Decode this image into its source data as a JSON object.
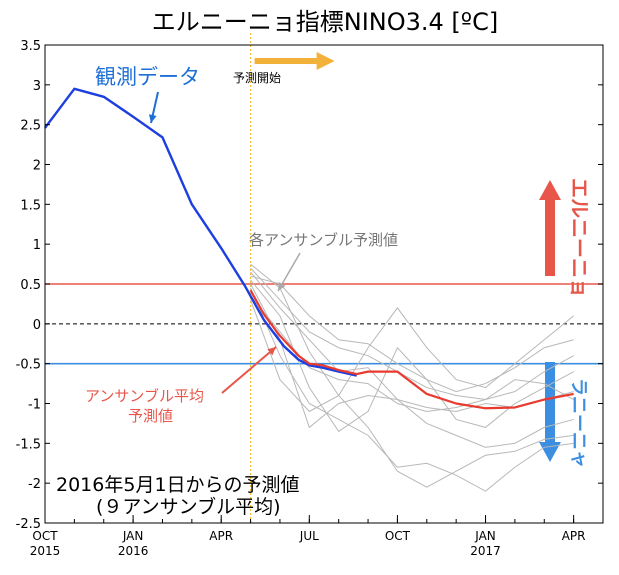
{
  "chart_data": {
    "type": "line",
    "title": "エルニーニョ指標NINO3.4 [ºC]",
    "xlabel": "",
    "ylabel": "",
    "xlim": [
      "2015-10",
      "2017-05"
    ],
    "ylim": [
      -2.5,
      3.5
    ],
    "yticks": [
      "3.5",
      "3",
      "2.5",
      "2",
      "1.5",
      "1",
      "0.5",
      "0",
      "-0.5",
      "-1",
      "-1.5",
      "-2",
      "-2.5"
    ],
    "xticks": [
      {
        "month": "2015-10",
        "label": "OCT",
        "year": "2015"
      },
      {
        "month": "2016-01",
        "label": "JAN",
        "year": "2016"
      },
      {
        "month": "2016-04",
        "label": "APR",
        "year": ""
      },
      {
        "month": "2016-07",
        "label": "JUL",
        "year": ""
      },
      {
        "month": "2016-10",
        "label": "OCT",
        "year": ""
      },
      {
        "month": "2017-01",
        "label": "JAN",
        "year": "2017"
      },
      {
        "month": "2017-04",
        "label": "APR",
        "year": ""
      }
    ],
    "grid": false,
    "reference_lines": [
      {
        "y": 0.5,
        "color": "#e8564a",
        "style": "solid"
      },
      {
        "y": 0,
        "color": "#000000",
        "style": "dashed"
      },
      {
        "y": -0.5,
        "color": "#3c8fe0",
        "style": "solid"
      }
    ],
    "forecast_start": "2016-05-01",
    "observed": {
      "color": "#1d3fe0",
      "points": [
        [
          "2015-10-01",
          2.46
        ],
        [
          "2015-11-01",
          2.95
        ],
        [
          "2015-12-01",
          2.85
        ],
        [
          "2016-01-01",
          2.6
        ],
        [
          "2016-02-01",
          2.34
        ],
        [
          "2016-03-01",
          1.5
        ],
        [
          "2016-04-01",
          0.95
        ],
        [
          "2016-04-25",
          0.48
        ],
        [
          "2016-05-15",
          0.05
        ],
        [
          "2016-06-05",
          -0.28
        ],
        [
          "2016-06-20",
          -0.45
        ],
        [
          "2016-07-01",
          -0.52
        ],
        [
          "2016-07-15",
          -0.55
        ],
        [
          "2016-08-01",
          -0.6
        ],
        [
          "2016-08-20",
          -0.65
        ]
      ]
    },
    "ensemble_mean": {
      "color": "#e83a2e",
      "points": [
        [
          "2016-05-01",
          0.42
        ],
        [
          "2016-05-15",
          0.12
        ],
        [
          "2016-06-01",
          -0.15
        ],
        [
          "2016-06-20",
          -0.4
        ],
        [
          "2016-07-01",
          -0.5
        ],
        [
          "2016-07-15",
          -0.52
        ],
        [
          "2016-08-01",
          -0.58
        ],
        [
          "2016-08-20",
          -0.63
        ],
        [
          "2016-09-01",
          -0.6
        ],
        [
          "2016-10-01",
          -0.6
        ],
        [
          "2016-11-01",
          -0.88
        ],
        [
          "2016-12-01",
          -1.0
        ],
        [
          "2017-01-01",
          -1.06
        ],
        [
          "2017-02-01",
          -1.05
        ],
        [
          "2017-03-01",
          -0.95
        ],
        [
          "2017-04-01",
          -0.88
        ]
      ]
    },
    "ensemble_members": {
      "color": "#b8b8b8",
      "series": [
        [
          [
            "2016-05-01",
            0.7
          ],
          [
            "2016-06-01",
            0.3
          ],
          [
            "2016-07-01",
            -0.1
          ],
          [
            "2016-08-01",
            -0.3
          ],
          [
            "2016-09-01",
            -0.4
          ],
          [
            "2016-10-01",
            -0.6
          ],
          [
            "2016-11-01",
            -0.8
          ],
          [
            "2016-12-01",
            -0.9
          ],
          [
            "2017-01-01",
            -0.95
          ],
          [
            "2017-02-01",
            -0.85
          ],
          [
            "2017-03-01",
            -0.6
          ],
          [
            "2017-04-01",
            -0.4
          ]
        ],
        [
          [
            "2016-05-01",
            0.75
          ],
          [
            "2016-06-01",
            0.45
          ],
          [
            "2016-07-01",
            -0.35
          ],
          [
            "2016-08-01",
            -0.9
          ],
          [
            "2016-09-01",
            -0.3
          ],
          [
            "2016-10-01",
            0.2
          ],
          [
            "2016-11-01",
            -0.3
          ],
          [
            "2016-12-01",
            -0.7
          ],
          [
            "2017-01-01",
            -0.8
          ],
          [
            "2017-02-01",
            -0.5
          ],
          [
            "2017-03-01",
            -0.2
          ],
          [
            "2017-04-01",
            0.1
          ]
        ],
        [
          [
            "2016-05-01",
            0.6
          ],
          [
            "2016-06-01",
            0.5
          ],
          [
            "2016-07-01",
            0.1
          ],
          [
            "2016-08-01",
            -0.2
          ],
          [
            "2016-09-01",
            -0.25
          ],
          [
            "2016-10-01",
            -0.5
          ],
          [
            "2016-11-01",
            -0.7
          ],
          [
            "2016-12-01",
            -0.85
          ],
          [
            "2017-01-01",
            -0.75
          ],
          [
            "2017-02-01",
            -0.55
          ],
          [
            "2017-03-01",
            -0.3
          ],
          [
            "2017-04-01",
            -0.2
          ]
        ],
        [
          [
            "2016-05-01",
            0.5
          ],
          [
            "2016-06-01",
            -0.2
          ],
          [
            "2016-07-01",
            -1.3
          ],
          [
            "2016-08-01",
            -1.0
          ],
          [
            "2016-09-01",
            -0.9
          ],
          [
            "2016-10-01",
            -0.95
          ],
          [
            "2016-11-01",
            -1.25
          ],
          [
            "2016-12-01",
            -1.4
          ],
          [
            "2017-01-01",
            -1.55
          ],
          [
            "2017-02-01",
            -1.5
          ],
          [
            "2017-03-01",
            -1.3
          ],
          [
            "2017-04-01",
            -1.2
          ]
        ],
        [
          [
            "2016-05-01",
            0.55
          ],
          [
            "2016-06-01",
            0.1
          ],
          [
            "2016-07-01",
            -0.8
          ],
          [
            "2016-08-01",
            -1.35
          ],
          [
            "2016-09-01",
            -1.1
          ],
          [
            "2016-10-01",
            -0.3
          ],
          [
            "2016-11-01",
            -0.7
          ],
          [
            "2016-12-01",
            -1.2
          ],
          [
            "2017-01-01",
            -1.3
          ],
          [
            "2017-02-01",
            -1.0
          ],
          [
            "2017-03-01",
            -0.8
          ],
          [
            "2017-04-01",
            -0.6
          ]
        ],
        [
          [
            "2016-05-01",
            0.45
          ],
          [
            "2016-06-01",
            -0.4
          ],
          [
            "2016-07-01",
            -1.0
          ],
          [
            "2016-08-01",
            -1.2
          ],
          [
            "2016-09-01",
            -1.4
          ],
          [
            "2016-10-01",
            -1.8
          ],
          [
            "2016-11-01",
            -1.75
          ],
          [
            "2016-12-01",
            -1.9
          ],
          [
            "2017-01-01",
            -2.1
          ],
          [
            "2017-02-01",
            -1.8
          ],
          [
            "2017-03-01",
            -1.55
          ],
          [
            "2017-04-01",
            -1.5
          ]
        ],
        [
          [
            "2016-05-01",
            0.3
          ],
          [
            "2016-06-01",
            -0.7
          ],
          [
            "2016-07-01",
            -1.1
          ],
          [
            "2016-08-01",
            -0.9
          ],
          [
            "2016-09-01",
            -1.3
          ],
          [
            "2016-10-01",
            -1.85
          ],
          [
            "2016-11-01",
            -2.05
          ],
          [
            "2016-12-01",
            -1.85
          ],
          [
            "2017-01-01",
            -1.65
          ],
          [
            "2017-02-01",
            -1.6
          ],
          [
            "2017-03-01",
            -1.45
          ],
          [
            "2017-04-01",
            -1.4
          ]
        ],
        [
          [
            "2016-05-01",
            0.65
          ],
          [
            "2016-06-01",
            0.2
          ],
          [
            "2016-07-01",
            -0.2
          ],
          [
            "2016-08-01",
            -0.6
          ],
          [
            "2016-09-01",
            -0.55
          ],
          [
            "2016-10-01",
            -0.95
          ],
          [
            "2016-11-01",
            -1.05
          ],
          [
            "2016-12-01",
            -1.1
          ],
          [
            "2017-01-01",
            -1.0
          ],
          [
            "2017-02-01",
            -1.05
          ],
          [
            "2017-03-01",
            -0.95
          ],
          [
            "2017-04-01",
            -0.85
          ]
        ],
        [
          [
            "2016-05-01",
            0.35
          ],
          [
            "2016-06-01",
            -0.1
          ],
          [
            "2016-07-01",
            -0.55
          ],
          [
            "2016-08-01",
            -0.7
          ],
          [
            "2016-09-01",
            -0.75
          ],
          [
            "2016-10-01",
            -1.0
          ],
          [
            "2016-11-01",
            -1.1
          ],
          [
            "2016-12-01",
            -1.05
          ],
          [
            "2017-01-01",
            -0.95
          ],
          [
            "2017-02-01",
            -0.7
          ],
          [
            "2017-03-01",
            -0.75
          ],
          [
            "2017-04-01",
            -0.95
          ]
        ]
      ]
    },
    "annotations": {
      "observed_label": "観測データ",
      "forecast_start_label": "予測開始",
      "members_label": "各アンサンブル予測値",
      "mean_label_line1": "アンサンブル平均",
      "mean_label_line2": "予測値",
      "elnino_label": "エルニーニョ",
      "lanina_label": "ラニーニャ",
      "footnote_line1": "2016年5月1日からの予測値",
      "footnote_line2": "(９アンサンブル平均)"
    },
    "colors": {
      "observed": "#1d3fe0",
      "mean": "#e83a2e",
      "members": "#b8b8b8",
      "elnino": "#e8564a",
      "lanina": "#3c8fe0",
      "forecast_start_line": "#f2c230",
      "forecast_arrow": "#f2b23a",
      "observed_label": "#1e6fd6",
      "mean_label": "#e8564a",
      "members_label": "#777777"
    }
  }
}
